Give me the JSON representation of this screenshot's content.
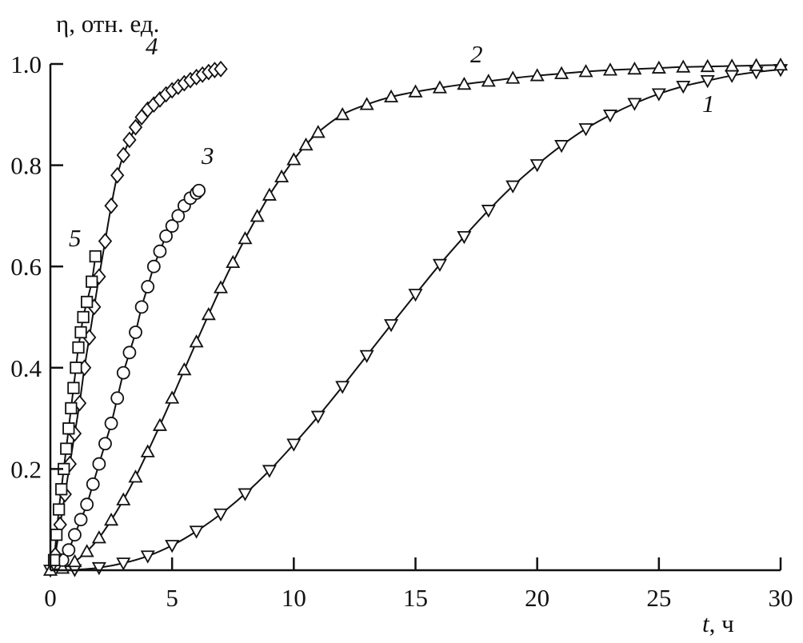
{
  "chart_data": {
    "type": "scatter",
    "title": "",
    "xlabel": "t, ч",
    "xlabel_italic_part": "t",
    "xlabel_rest": ", ч",
    "ylabel": "η, отн. ед.",
    "xlim": [
      0,
      30
    ],
    "ylim": [
      0,
      1.0
    ],
    "xticks": [
      0,
      5,
      10,
      15,
      20,
      25,
      30
    ],
    "xtick_labels": [
      "0",
      "5",
      "10",
      "15",
      "20",
      "25",
      "30"
    ],
    "yticks": [
      0.2,
      0.4,
      0.6,
      0.8,
      1.0
    ],
    "ytick_labels": [
      "0.2",
      "0.4",
      "0.6",
      "0.8",
      "1.0"
    ],
    "grid": false,
    "series": [
      {
        "name": "1",
        "marker": "triangle-down",
        "x": [
          0,
          1,
          2,
          3,
          4,
          5,
          6,
          7,
          8,
          9,
          10,
          11,
          12,
          13,
          14,
          15,
          16,
          17,
          18,
          19,
          20,
          21,
          22,
          23,
          24,
          25,
          26,
          27,
          28,
          29,
          30
        ],
        "y": [
          0,
          0.001,
          0.005,
          0.014,
          0.028,
          0.049,
          0.077,
          0.111,
          0.151,
          0.197,
          0.249,
          0.304,
          0.363,
          0.424,
          0.485,
          0.545,
          0.604,
          0.659,
          0.711,
          0.759,
          0.801,
          0.839,
          0.872,
          0.899,
          0.922,
          0.941,
          0.956,
          0.967,
          0.977,
          0.984,
          0.989
        ]
      },
      {
        "name": "2",
        "marker": "triangle-up",
        "x": [
          0,
          0.5,
          1,
          1.5,
          2,
          2.5,
          3,
          3.5,
          4,
          4.5,
          5,
          5.5,
          6,
          6.5,
          7,
          7.5,
          8,
          8.5,
          9,
          9.5,
          10,
          10.5,
          11,
          12,
          13,
          14,
          15,
          16,
          17,
          18,
          19,
          20,
          21,
          22,
          23,
          24,
          25,
          26,
          27,
          28,
          29,
          30
        ],
        "y": [
          0,
          0.004,
          0.017,
          0.037,
          0.064,
          0.099,
          0.139,
          0.184,
          0.234,
          0.286,
          0.34,
          0.396,
          0.451,
          0.505,
          0.558,
          0.608,
          0.655,
          0.699,
          0.741,
          0.777,
          0.811,
          0.84,
          0.865,
          0.9,
          0.92,
          0.935,
          0.945,
          0.953,
          0.96,
          0.966,
          0.972,
          0.977,
          0.981,
          0.985,
          0.988,
          0.99,
          0.992,
          0.994,
          0.995,
          0.996,
          0.997,
          0.998
        ]
      },
      {
        "name": "3",
        "marker": "circle",
        "x": [
          0.5,
          0.75,
          1,
          1.25,
          1.5,
          1.75,
          2,
          2.25,
          2.5,
          2.75,
          3,
          3.25,
          3.5,
          3.75,
          4,
          4.25,
          4.5,
          4.75,
          5,
          5.25,
          5.5,
          5.75,
          6,
          6.1
        ],
        "y": [
          0.02,
          0.04,
          0.07,
          0.1,
          0.13,
          0.17,
          0.21,
          0.25,
          0.29,
          0.34,
          0.39,
          0.43,
          0.47,
          0.52,
          0.56,
          0.6,
          0.63,
          0.66,
          0.68,
          0.7,
          0.72,
          0.735,
          0.745,
          0.75
        ]
      },
      {
        "name": "4",
        "marker": "diamond",
        "x": [
          0.2,
          0.4,
          0.6,
          0.8,
          1.0,
          1.2,
          1.4,
          1.6,
          1.8,
          2.0,
          2.25,
          2.5,
          2.75,
          3.0,
          3.25,
          3.5,
          3.75,
          4.0,
          4.25,
          4.5,
          4.75,
          5.0,
          5.25,
          5.5,
          5.75,
          6.0,
          6.25,
          6.5,
          6.75,
          7.0
        ],
        "y": [
          0.03,
          0.09,
          0.15,
          0.21,
          0.27,
          0.33,
          0.4,
          0.46,
          0.52,
          0.58,
          0.65,
          0.72,
          0.78,
          0.82,
          0.85,
          0.875,
          0.895,
          0.91,
          0.92,
          0.93,
          0.94,
          0.948,
          0.955,
          0.962,
          0.968,
          0.974,
          0.979,
          0.984,
          0.988,
          0.99
        ]
      },
      {
        "name": "5",
        "marker": "square",
        "x": [
          0.15,
          0.25,
          0.35,
          0.45,
          0.55,
          0.65,
          0.75,
          0.85,
          0.95,
          1.05,
          1.15,
          1.25,
          1.35,
          1.5,
          1.7,
          1.85
        ],
        "y": [
          0.02,
          0.07,
          0.12,
          0.16,
          0.2,
          0.24,
          0.28,
          0.32,
          0.36,
          0.4,
          0.44,
          0.47,
          0.5,
          0.53,
          0.57,
          0.62
        ]
      }
    ]
  }
}
